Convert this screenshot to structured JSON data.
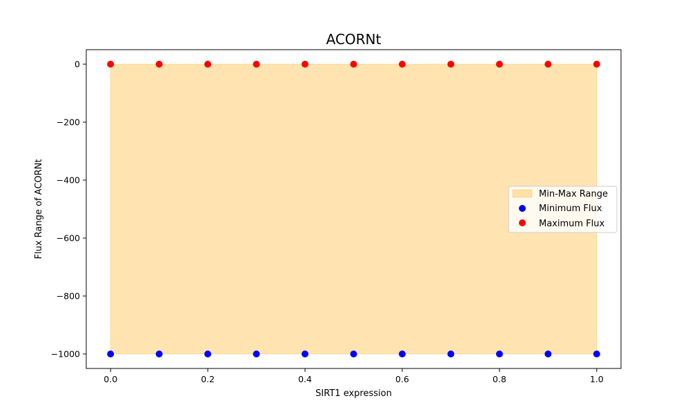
{
  "chart_data": {
    "type": "scatter",
    "title": "ACORNt",
    "xlabel": "SIRT1 expression",
    "ylabel": "Flux Range of ACORNt",
    "xlim": [
      -0.05,
      1.05
    ],
    "ylim": [
      -1050,
      50
    ],
    "x_ticks": [
      0.0,
      0.2,
      0.4,
      0.6,
      0.8,
      1.0
    ],
    "x_tick_labels": [
      "0.0",
      "0.2",
      "0.4",
      "0.6",
      "0.8",
      "1.0"
    ],
    "y_ticks": [
      0,
      -200,
      -400,
      -600,
      -800,
      -1000
    ],
    "y_tick_labels": [
      "0",
      "−200",
      "−400",
      "−600",
      "−800",
      "−1000"
    ],
    "x": [
      0.0,
      0.1,
      0.2,
      0.3,
      0.4,
      0.5,
      0.6,
      0.7,
      0.8,
      0.9,
      1.0
    ],
    "fill_range": {
      "name": "Min-Max Range",
      "lower": [
        -1000,
        -1000,
        -1000,
        -1000,
        -1000,
        -1000,
        -1000,
        -1000,
        -1000,
        -1000,
        -1000
      ],
      "upper": [
        0,
        0,
        0,
        0,
        0,
        0,
        0,
        0,
        0,
        0,
        0
      ],
      "color": "#ffa500",
      "alpha": 0.3
    },
    "series": [
      {
        "name": "Minimum Flux",
        "values": [
          -1000,
          -1000,
          -1000,
          -1000,
          -1000,
          -1000,
          -1000,
          -1000,
          -1000,
          -1000,
          -1000
        ],
        "color": "#0000ff"
      },
      {
        "name": "Maximum Flux",
        "values": [
          0,
          0,
          0,
          0,
          0,
          0,
          0,
          0,
          0,
          0,
          0
        ],
        "color": "#ff0000"
      }
    ],
    "grid": false,
    "legend_position": "center-right"
  }
}
